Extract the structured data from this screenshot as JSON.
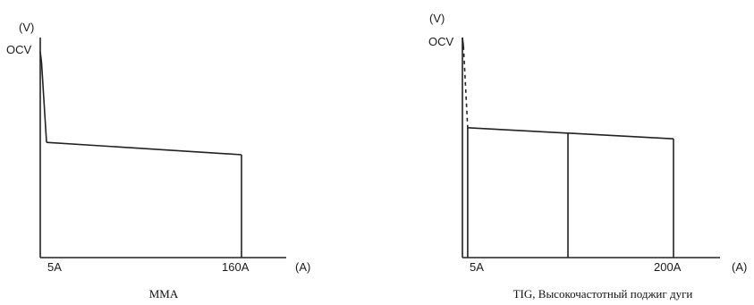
{
  "chart_data": [
    {
      "type": "line",
      "title": "",
      "caption": "MMA",
      "ylabel": "(V)",
      "xlabel": "(A)",
      "y_tick_labels": [
        "OCV"
      ],
      "x_tick_labels": [
        "5A",
        "160A"
      ],
      "series": [
        {
          "points": [
            [
              0,
              100
            ],
            [
              1,
              95
            ],
            [
              5,
              56
            ],
            [
              160,
              50
            ]
          ],
          "dashed_segments": []
        }
      ],
      "vertical_lines": [
        160
      ],
      "xlim": [
        0,
        200
      ],
      "ylim": [
        0,
        100
      ],
      "grid": false
    },
    {
      "type": "line",
      "title": "",
      "caption": "TIG, Высокочастотный поджиг дуги",
      "ylabel": "(V)",
      "xlabel": "(A)",
      "y_tick_labels": [
        "OCV"
      ],
      "x_tick_labels": [
        "5A",
        "200A"
      ],
      "series": [
        {
          "points": [
            [
              0,
              100
            ],
            [
              1,
              96
            ],
            [
              5,
              59
            ],
            [
              200,
              54
            ]
          ],
          "dashed_segments": [
            1
          ]
        }
      ],
      "vertical_lines": [
        5,
        100,
        200
      ],
      "xlim": [
        0,
        235
      ],
      "ylim": [
        0,
        100
      ],
      "grid": false
    }
  ]
}
